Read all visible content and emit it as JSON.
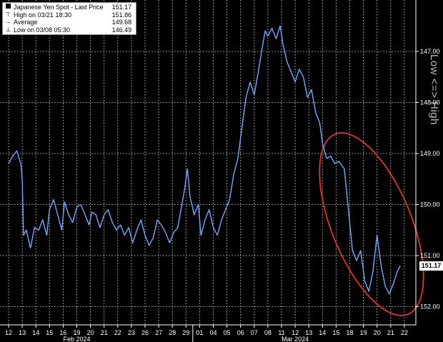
{
  "legend": {
    "items": [
      {
        "label": "Japanese Yen Spot - Last Price",
        "value": "151.17",
        "symbol": "square"
      },
      {
        "label": "High on 03/21 18:30",
        "value": "151.86",
        "symbol": "high"
      },
      {
        "label": "Average",
        "value": "149.68",
        "symbol": "avg"
      },
      {
        "label": "Low on 03/08 05:30",
        "value": "146.49",
        "symbol": "low"
      }
    ]
  },
  "axis_note": "Low <=> High",
  "last_tag": "151.17",
  "colors": {
    "background": "#000000",
    "line": "#4f7fd0",
    "annotation_ellipse": "#cc3333",
    "grid": "#bbbbbb"
  },
  "chart_data": {
    "type": "line",
    "title": "",
    "xlabel": "",
    "ylabel": "",
    "y_axis": "inverted",
    "ylim": [
      146.0,
      152.3
    ],
    "yticks": [
      147.0,
      148.0,
      149.0,
      150.0,
      151.0,
      152.0
    ],
    "ytick_labels": [
      "147.00",
      "148.00",
      "149.00",
      "150.00",
      "151.00",
      "152.00"
    ],
    "x_categories": [
      "12",
      "13",
      "14",
      "15",
      "16",
      "19",
      "20",
      "21",
      "22",
      "23",
      "26",
      "27",
      "28",
      "29",
      "01",
      "04",
      "05",
      "06",
      "07",
      "08",
      "11",
      "12",
      "13",
      "14",
      "15",
      "18",
      "19",
      "20",
      "21",
      "22"
    ],
    "month_labels": [
      {
        "label": "Feb 2024",
        "at": "19"
      },
      {
        "label": "Mar 2024",
        "at": "12"
      }
    ],
    "grid": true,
    "series": [
      {
        "name": "",
        "values": [
          [
            0.0,
            149.2
          ],
          [
            0.3,
            149.05
          ],
          [
            0.6,
            148.95
          ],
          [
            0.9,
            149.2
          ],
          [
            1.0,
            149.5
          ],
          [
            1.1,
            150.6
          ],
          [
            1.3,
            150.5
          ],
          [
            1.6,
            150.85
          ],
          [
            1.9,
            150.45
          ],
          [
            2.2,
            150.5
          ],
          [
            2.5,
            150.3
          ],
          [
            2.8,
            150.6
          ],
          [
            3.0,
            150.1
          ],
          [
            3.3,
            149.9
          ],
          [
            3.6,
            150.2
          ],
          [
            3.9,
            150.5
          ],
          [
            4.1,
            149.95
          ],
          [
            4.4,
            150.2
          ],
          [
            4.7,
            150.35
          ],
          [
            5.0,
            150.05
          ],
          [
            5.3,
            150.0
          ],
          [
            5.6,
            150.2
          ],
          [
            5.9,
            150.4
          ],
          [
            6.1,
            150.15
          ],
          [
            6.4,
            150.2
          ],
          [
            6.7,
            150.45
          ],
          [
            7.0,
            150.2
          ],
          [
            7.3,
            150.1
          ],
          [
            7.6,
            150.35
          ],
          [
            7.9,
            150.5
          ],
          [
            8.2,
            150.4
          ],
          [
            8.5,
            150.6
          ],
          [
            8.8,
            150.45
          ],
          [
            9.1,
            150.75
          ],
          [
            9.4,
            150.5
          ],
          [
            9.7,
            150.3
          ],
          [
            10.0,
            150.6
          ],
          [
            10.3,
            150.8
          ],
          [
            10.6,
            150.65
          ],
          [
            10.9,
            150.3
          ],
          [
            11.2,
            150.4
          ],
          [
            11.5,
            150.55
          ],
          [
            11.8,
            150.75
          ],
          [
            12.1,
            150.55
          ],
          [
            12.4,
            150.45
          ],
          [
            12.7,
            150.0
          ],
          [
            12.9,
            149.7
          ],
          [
            13.1,
            149.3
          ],
          [
            13.3,
            149.85
          ],
          [
            13.6,
            150.2
          ],
          [
            13.9,
            150.0
          ],
          [
            14.1,
            150.6
          ],
          [
            14.4,
            150.3
          ],
          [
            14.7,
            150.1
          ],
          [
            15.0,
            150.45
          ],
          [
            15.3,
            150.6
          ],
          [
            15.6,
            150.3
          ],
          [
            15.9,
            150.1
          ],
          [
            16.2,
            149.9
          ],
          [
            16.5,
            149.4
          ],
          [
            16.8,
            149.1
          ],
          [
            17.1,
            148.5
          ],
          [
            17.4,
            147.9
          ],
          [
            17.7,
            147.6
          ],
          [
            18.0,
            147.85
          ],
          [
            18.3,
            147.4
          ],
          [
            18.6,
            146.9
          ],
          [
            18.8,
            146.6
          ],
          [
            19.0,
            146.7
          ],
          [
            19.3,
            146.55
          ],
          [
            19.6,
            146.75
          ],
          [
            19.9,
            146.5
          ],
          [
            20.1,
            146.85
          ],
          [
            20.4,
            147.2
          ],
          [
            20.7,
            147.4
          ],
          [
            21.0,
            147.6
          ],
          [
            21.3,
            147.35
          ],
          [
            21.6,
            147.5
          ],
          [
            21.9,
            147.9
          ],
          [
            22.2,
            147.75
          ],
          [
            22.5,
            148.2
          ],
          [
            22.8,
            148.4
          ],
          [
            23.0,
            148.8
          ],
          [
            23.3,
            149.1
          ],
          [
            23.6,
            149.05
          ],
          [
            23.9,
            149.2
          ],
          [
            24.2,
            149.15
          ],
          [
            24.6,
            149.3
          ],
          [
            24.9,
            150.1
          ],
          [
            25.2,
            150.9
          ],
          [
            25.5,
            151.1
          ],
          [
            25.8,
            150.9
          ],
          [
            26.1,
            151.5
          ],
          [
            26.4,
            151.7
          ],
          [
            26.7,
            151.3
          ],
          [
            27.0,
            150.6
          ],
          [
            27.3,
            151.2
          ],
          [
            27.6,
            151.6
          ],
          [
            27.9,
            151.75
          ],
          [
            28.2,
            151.55
          ],
          [
            28.5,
            151.3
          ],
          [
            28.7,
            151.2
          ]
        ]
      }
    ]
  }
}
